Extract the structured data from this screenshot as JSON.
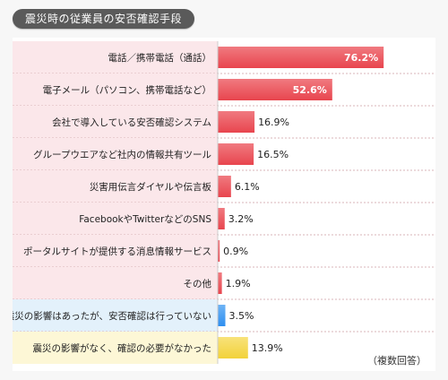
{
  "header": {
    "title": "震災時の従業員の安否確認手段"
  },
  "note": "（複数回答）",
  "colors": {
    "bar_red": "#e8454e",
    "bar_red_light": "#f07a80",
    "bar_blue": "#2f8ff0",
    "bar_yellow": "#f2d23a",
    "row_pink": "#fbe7ea",
    "row_blue": "#e3f1fb",
    "row_yellow": "#fdf7d6"
  },
  "chart_data": {
    "type": "bar",
    "orientation": "horizontal",
    "unit": "%",
    "categories": [
      "電話／携帯電話（通話）",
      "電子メール（パソコン、携帯電話など）",
      "会社で導入している安否確認システム",
      "グループウエアなど社内の情報共有ツール",
      "災害用伝言ダイヤルや伝言板",
      "FacebookやTwitterなどのSNS",
      "ポータルサイトが提供する消息情報サービス",
      "その他",
      "震災の影響はあったが、安否確認は行っていない",
      "震災の影響がなく、確認の必要がなかった"
    ],
    "values": [
      76.2,
      52.6,
      16.9,
      16.5,
      6.1,
      3.2,
      0.9,
      1.9,
      3.5,
      13.9
    ],
    "value_labels": [
      "76.2%",
      "52.6%",
      "16.9%",
      "16.5%",
      "6.1%",
      "3.2%",
      "0.9%",
      "1.9%",
      "3.5%",
      "13.9%"
    ],
    "groups": [
      "red",
      "red",
      "red",
      "red",
      "red",
      "red",
      "red",
      "red",
      "blue",
      "yellow"
    ],
    "xlim": [
      0,
      100
    ]
  }
}
